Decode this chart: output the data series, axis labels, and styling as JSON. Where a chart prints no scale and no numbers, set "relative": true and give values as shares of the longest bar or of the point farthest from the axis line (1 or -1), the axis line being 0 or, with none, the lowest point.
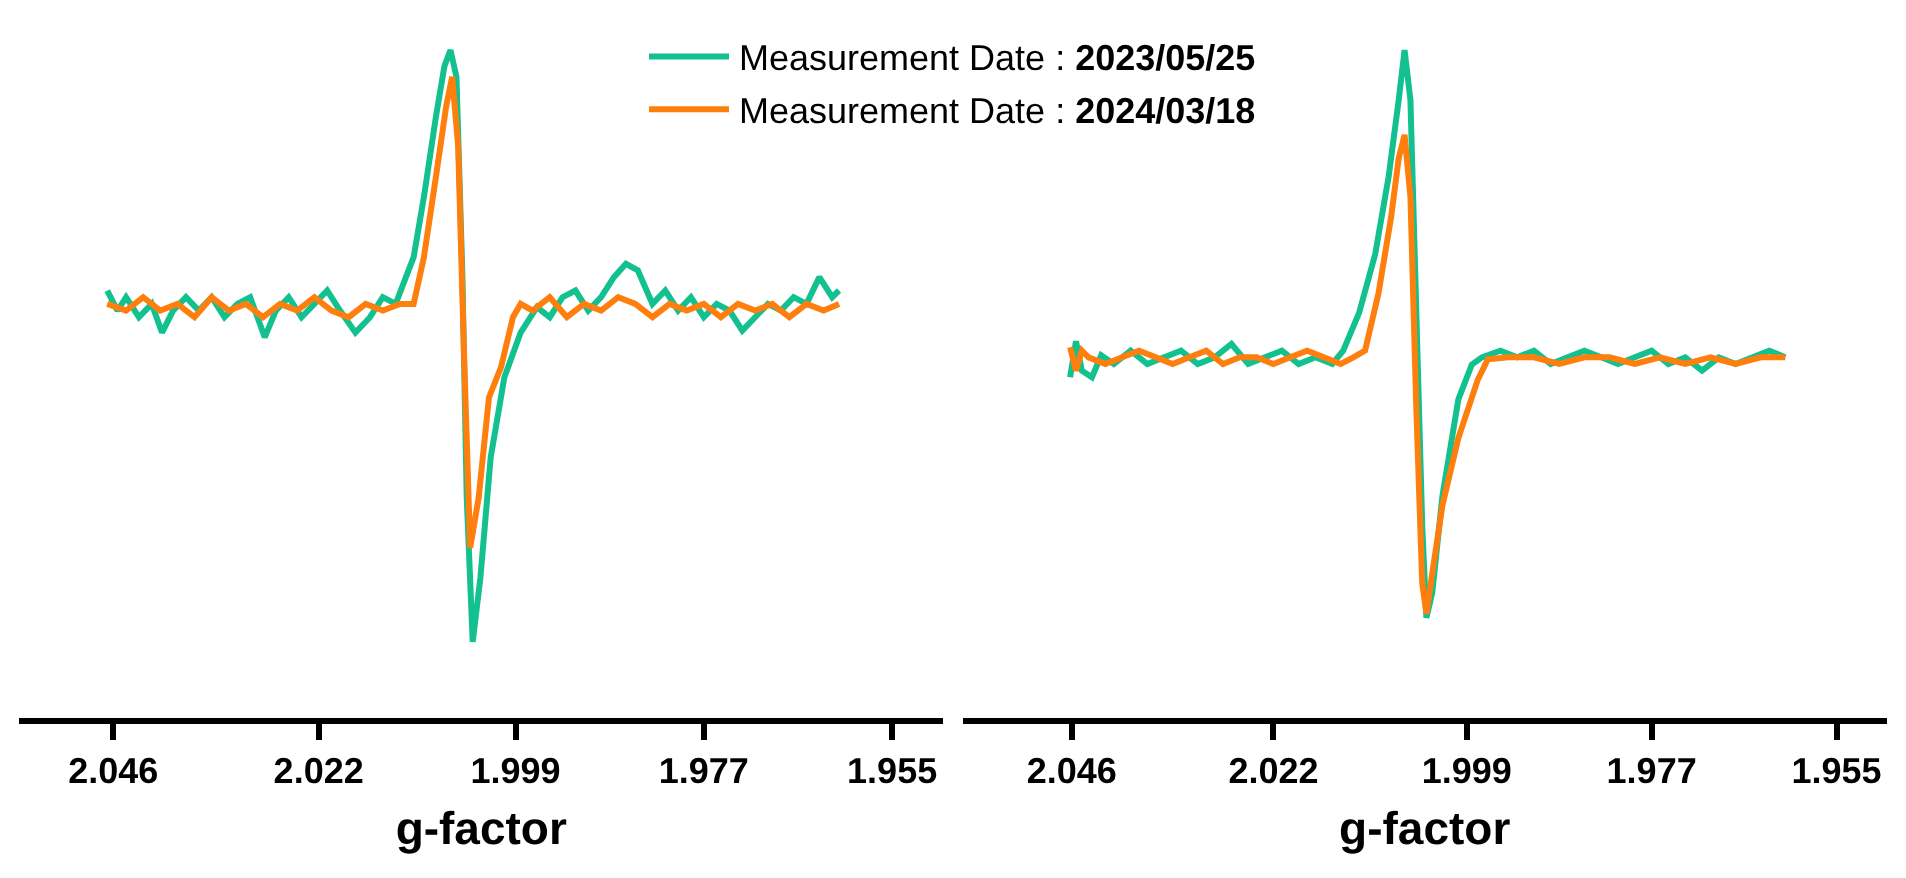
{
  "chart_data": [
    {
      "type": "line",
      "relative": true,
      "xlabel": "g-factor",
      "xlim": [
        2.057,
        1.949
      ],
      "xticks": [
        2.046,
        2.022,
        1.999,
        1.977,
        1.955
      ],
      "legend": "top",
      "marker": "none",
      "line_style": "solid",
      "tick_labels": "x",
      "series": [
        {
          "name": "Measurement Date : 2023/05/25",
          "color": "#13c08f",
          "x": [
            2.0467,
            2.0455,
            2.0445,
            2.043,
            2.0415,
            2.0403,
            2.039,
            2.0375,
            2.036,
            2.0345,
            2.033,
            2.0315,
            2.03,
            2.0283,
            2.027,
            2.0255,
            2.024,
            2.0225,
            2.021,
            2.0195,
            2.0177,
            2.016,
            2.0145,
            2.013,
            2.0109,
            2.0097,
            2.0083,
            2.0073,
            2.0066,
            2.0059,
            2.0052,
            2.0047,
            2.004,
            2.0031,
            2.0019,
            2.0003,
            1.9984,
            1.9965,
            1.995,
            1.9935,
            1.992,
            1.9905,
            1.989,
            1.9875,
            1.9861,
            1.9847,
            1.983,
            1.9815,
            1.98,
            1.9785,
            1.977,
            1.9755,
            1.974,
            1.9725,
            1.971,
            1.9695,
            1.968,
            1.9665,
            1.965,
            1.9635,
            1.962,
            1.9612
          ],
          "values": [
            0.64,
            0.61,
            0.63,
            0.6,
            0.62,
            0.577,
            0.61,
            0.63,
            0.61,
            0.63,
            0.6,
            0.62,
            0.63,
            0.57,
            0.61,
            0.63,
            0.6,
            0.62,
            0.64,
            0.61,
            0.577,
            0.6,
            0.63,
            0.62,
            0.69,
            0.78,
            0.9,
            0.976,
            1,
            0.96,
            0.66,
            0.33,
            0.114,
            0.21,
            0.39,
            0.51,
            0.577,
            0.615,
            0.6,
            0.63,
            0.64,
            0.61,
            0.63,
            0.66,
            0.68,
            0.67,
            0.62,
            0.64,
            0.61,
            0.63,
            0.6,
            0.62,
            0.61,
            0.58,
            0.6,
            0.62,
            0.61,
            0.63,
            0.62,
            0.66,
            0.63,
            0.64
          ]
        },
        {
          "name": "Measurement Date : 2024/03/18",
          "color": "#ff7f0e",
          "x": [
            2.0467,
            2.0445,
            2.0425,
            2.0405,
            2.0385,
            2.0365,
            2.0345,
            2.0325,
            2.0305,
            2.0285,
            2.0265,
            2.0245,
            2.0225,
            2.0205,
            2.0185,
            2.0165,
            2.0145,
            2.0125,
            2.0109,
            2.0097,
            2.0083,
            2.0071,
            2.0064,
            2.0057,
            2.005,
            2.0043,
            2.0033,
            2.0021,
            2.0007,
            1.9993,
            1.9984,
            1.997,
            1.995,
            1.993,
            1.991,
            1.989,
            1.987,
            1.985,
            1.983,
            1.981,
            1.979,
            1.977,
            1.975,
            1.973,
            1.971,
            1.969,
            1.967,
            1.965,
            1.963,
            1.9612
          ],
          "values": [
            0.62,
            0.61,
            0.63,
            0.61,
            0.62,
            0.6,
            0.63,
            0.61,
            0.62,
            0.6,
            0.62,
            0.61,
            0.63,
            0.61,
            0.6,
            0.62,
            0.61,
            0.62,
            0.62,
            0.69,
            0.81,
            0.916,
            0.96,
            0.856,
            0.54,
            0.255,
            0.33,
            0.48,
            0.525,
            0.6,
            0.62,
            0.61,
            0.63,
            0.6,
            0.62,
            0.61,
            0.63,
            0.62,
            0.6,
            0.62,
            0.61,
            0.62,
            0.6,
            0.62,
            0.61,
            0.62,
            0.6,
            0.62,
            0.61,
            0.62
          ]
        }
      ]
    },
    {
      "type": "line",
      "relative": true,
      "xlabel": "g-factor",
      "xlim": [
        2.059,
        1.949
      ],
      "xticks": [
        2.046,
        2.022,
        1.999,
        1.977,
        1.955
      ],
      "marker": "none",
      "line_style": "solid",
      "tick_labels": "x",
      "series": [
        {
          "color": "#13c08f",
          "x": [
            2.0462,
            2.0455,
            2.0448,
            2.0436,
            2.0425,
            2.041,
            2.039,
            2.037,
            2.035,
            2.033,
            2.031,
            2.029,
            2.027,
            2.025,
            2.023,
            2.021,
            2.019,
            2.017,
            2.015,
            2.0137,
            2.0118,
            2.0099,
            2.0083,
            2.0071,
            2.0064,
            2.0057,
            2.005,
            2.0043,
            2.0038,
            2.0031,
            2.0019,
            2.0,
            1.9984,
            1.9972,
            1.995,
            1.993,
            1.991,
            1.989,
            1.987,
            1.985,
            1.983,
            1.981,
            1.979,
            1.977,
            1.975,
            1.973,
            1.971,
            1.969,
            1.967,
            1.965,
            1.963,
            1.9611
          ],
          "values": [
            0.51,
            0.564,
            0.52,
            0.51,
            0.543,
            0.53,
            0.55,
            0.53,
            0.54,
            0.55,
            0.53,
            0.54,
            0.56,
            0.53,
            0.54,
            0.55,
            0.53,
            0.54,
            0.53,
            0.55,
            0.607,
            0.694,
            0.81,
            0.925,
            1,
            0.925,
            0.607,
            0.289,
            0.15,
            0.188,
            0.332,
            0.477,
            0.529,
            0.54,
            0.55,
            0.54,
            0.55,
            0.53,
            0.54,
            0.55,
            0.54,
            0.53,
            0.54,
            0.55,
            0.53,
            0.54,
            0.52,
            0.54,
            0.53,
            0.54,
            0.55,
            0.54
          ]
        },
        {
          "color": "#ff7f0e",
          "x": [
            2.0462,
            2.0455,
            2.0448,
            2.044,
            2.042,
            2.04,
            2.038,
            2.036,
            2.034,
            2.032,
            2.03,
            2.028,
            2.026,
            2.024,
            2.022,
            2.02,
            2.018,
            2.016,
            2.014,
            2.0125,
            2.0111,
            2.0095,
            2.008,
            2.0071,
            2.0064,
            2.0057,
            2.005,
            2.0043,
            2.0038,
            2.0031,
            2.0019,
            2.0,
            1.9977,
            1.9965,
            1.994,
            1.991,
            1.988,
            1.985,
            1.982,
            1.979,
            1.976,
            1.973,
            1.97,
            1.967,
            1.964,
            1.9611
          ],
          "values": [
            0.555,
            0.52,
            0.55,
            0.54,
            0.53,
            0.54,
            0.55,
            0.54,
            0.53,
            0.54,
            0.55,
            0.53,
            0.54,
            0.54,
            0.53,
            0.54,
            0.55,
            0.54,
            0.53,
            0.54,
            0.55,
            0.636,
            0.75,
            0.838,
            0.873,
            0.78,
            0.462,
            0.202,
            0.156,
            0.217,
            0.318,
            0.419,
            0.506,
            0.537,
            0.54,
            0.54,
            0.53,
            0.54,
            0.54,
            0.53,
            0.54,
            0.53,
            0.54,
            0.53,
            0.54,
            0.54
          ]
        }
      ]
    }
  ]
}
